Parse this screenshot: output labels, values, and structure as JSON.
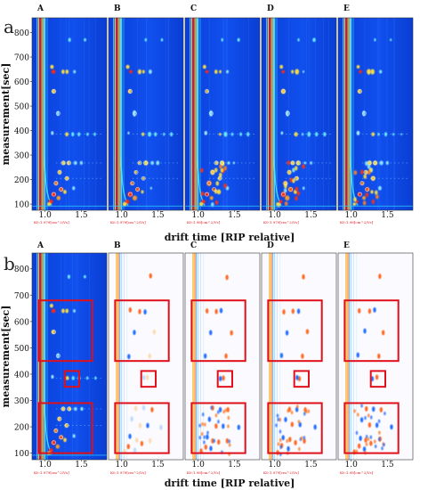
{
  "figure": {
    "panels": [
      {
        "label": "a",
        "ylabel": "measurement[sec]",
        "xlabel": "drift time [RIP relative]",
        "yticks": [
          "100",
          "200",
          "300",
          "400",
          "500",
          "600",
          "700",
          "800"
        ],
        "xticks": [
          "1.0",
          "1.5"
        ],
        "mode": "raw",
        "subplots": [
          {
            "label": "A",
            "footer": "K0:1.979[cm^2/Vs]"
          },
          {
            "label": "B",
            "footer": "K0:1.979[cm^2/Vs]"
          },
          {
            "label": "C",
            "footer": "K0:1.98[cm^2/Vs]"
          },
          {
            "label": "D",
            "footer": "K0:1.979[cm^2/Vs]"
          },
          {
            "label": "E",
            "footer": "K0:1.98[cm^2/Vs]"
          }
        ]
      },
      {
        "label": "b",
        "ylabel": "measurement[sec]",
        "xlabel": "drift time [RIP relative]",
        "yticks": [
          "100",
          "200",
          "300",
          "400",
          "500",
          "600",
          "700",
          "800"
        ],
        "xticks": [
          "1.0",
          "1.5"
        ],
        "mode": "difference",
        "subplots": [
          {
            "label": "A",
            "footer": "K0:1.979[cm^2/Vs]"
          },
          {
            "label": "B",
            "footer": "K0:1.979[cm^2/Vs]"
          },
          {
            "label": "C",
            "footer": "K0:1.98[cm^2/Vs]"
          },
          {
            "label": "D",
            "footer": "K0:1.979[cm^2/Vs]"
          },
          {
            "label": "E",
            "footer": "K0:1.98[cm^2/Vs]"
          }
        ],
        "regions": [
          {
            "x": [
              0.91,
              1.65
            ],
            "y": [
              450,
              680
            ]
          },
          {
            "x": [
              1.27,
              1.47
            ],
            "y": [
              352,
              412
            ]
          },
          {
            "x": [
              0.91,
              1.65
            ],
            "y": [
              100,
              290
            ]
          }
        ]
      }
    ]
  },
  "chart_data": [
    {
      "type": "heatmap",
      "title": "a",
      "xlabel": "drift time [RIP relative]",
      "ylabel": "measurement[sec]",
      "xlim": [
        0.82,
        1.85
      ],
      "ylim": [
        75,
        860
      ],
      "xticks": [
        1.0,
        1.5
      ],
      "yticks": [
        100,
        200,
        300,
        400,
        500,
        600,
        700,
        800
      ],
      "series": [
        {
          "name": "A",
          "footer": "K0:1.979[cm^2/Vs]"
        },
        {
          "name": "B",
          "footer": "K0:1.979[cm^2/Vs]"
        },
        {
          "name": "C",
          "footer": "K0:1.98[cm^2/Vs]"
        },
        {
          "name": "D",
          "footer": "K0:1.979[cm^2/Vs]"
        },
        {
          "name": "E",
          "footer": "K0:1.98[cm^2/Vs]"
        }
      ]
    },
    {
      "type": "heatmap",
      "title": "b",
      "xlabel": "drift time [RIP relative]",
      "ylabel": "measurement[sec]",
      "xlim": [
        0.82,
        1.85
      ],
      "ylim": [
        75,
        860
      ],
      "xticks": [
        1.0,
        1.5
      ],
      "yticks": [
        100,
        200,
        300,
        400,
        500,
        600,
        700,
        800
      ],
      "series": [
        {
          "name": "A",
          "footer": "K0:1.979[cm^2/Vs]"
        },
        {
          "name": "B",
          "footer": "K0:1.979[cm^2/Vs]"
        },
        {
          "name": "C",
          "footer": "K0:1.98[cm^2/Vs]"
        },
        {
          "name": "D",
          "footer": "K0:1.979[cm^2/Vs]"
        },
        {
          "name": "E",
          "footer": "K0:1.98[cm^2/Vs]"
        }
      ]
    }
  ]
}
